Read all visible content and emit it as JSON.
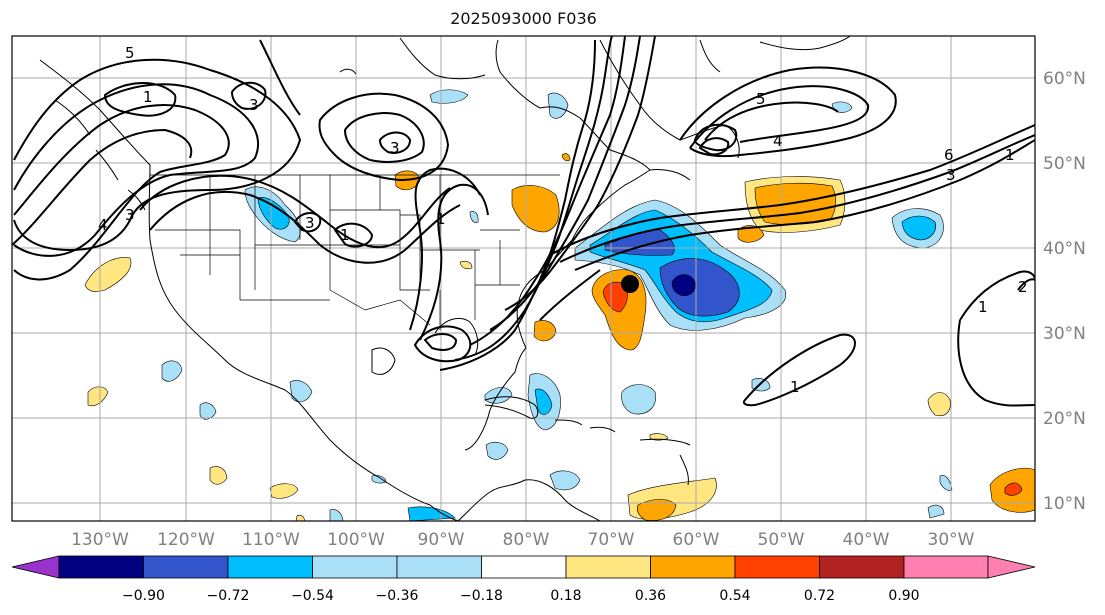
{
  "title": "2025093000 F036",
  "lon_ticks": [
    "130°W",
    "120°W",
    "110°W",
    "100°W",
    "90°W",
    "80°W",
    "70°W",
    "60°W",
    "50°W",
    "40°W",
    "30°W"
  ],
  "lat_ticks": [
    "60°N",
    "50°N",
    "40°N",
    "30°N",
    "20°N",
    "10°N"
  ],
  "colorbar": {
    "colors": [
      "#9933cc",
      "#000080",
      "#3355cc",
      "#00bfff",
      "#aadff8",
      "#ffffff",
      "#ffe680",
      "#ffa500",
      "#ff4000",
      "#b22222",
      "#ff80b0"
    ],
    "tick_labels": [
      "−0.90",
      "−0.72",
      "−0.54",
      "−0.36",
      "−0.18",
      "0.18",
      "0.36",
      "0.54",
      "0.72",
      "0.90"
    ]
  },
  "contour_labels": [
    "5",
    "1",
    "3",
    "3",
    "3",
    "5",
    "4",
    "1",
    "3",
    "6",
    "4",
    "1",
    "1",
    "2",
    "1",
    "3",
    "1"
  ],
  "marker": {
    "name": "storm-center-marker",
    "lon": -68.3,
    "lat": 35.8
  }
}
